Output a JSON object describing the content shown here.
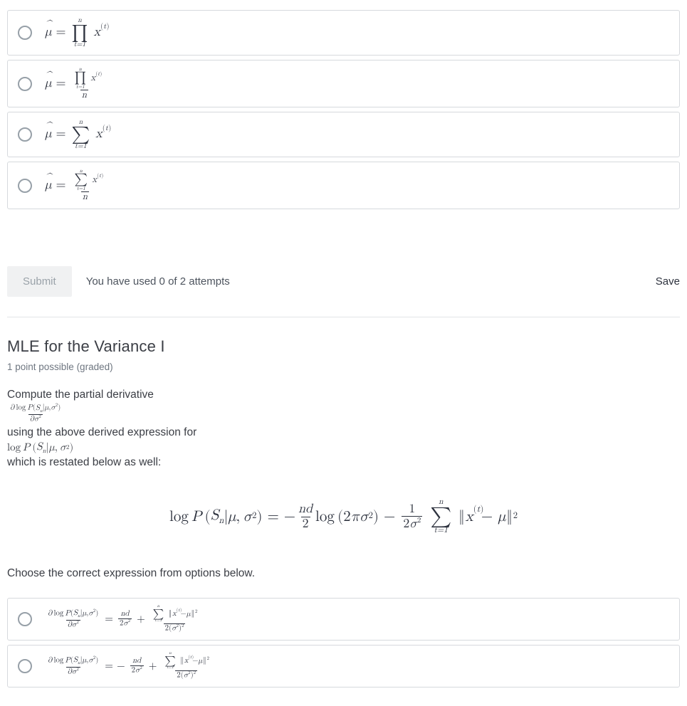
{
  "q1_options": {
    "opt1_html": "<span class='hat it'>μ</span>&nbsp;=&nbsp;<span class='sumop'><span class='lim'>n</span><span class='big'>∏</span><span class='lim'>t=1</span></span>&nbsp;<span class='xswrap'><span class='it'>x</span><span class='supTR'>(<span class='it'>t</span>)</span></span>",
    "opt2_html": "<span class='hat it'>μ</span>&nbsp;=&nbsp;<span class='frac'><span class='num'><span class='sumop'><span class='lim'>n</span><span class='big'>∏</span><span class='lim'>t=1</span></span>&nbsp;<span class='xswrap'><span class='it'>x</span><span class='supTR'>(<span class='it'>t</span>)</span></span></span><span class='den it'>n</span></span>",
    "opt3_html": "<span class='hat it'>μ</span>&nbsp;=&nbsp;<span class='sumop'><span class='lim'>n</span><span class='big'>∑</span><span class='lim'>t=1</span></span>&nbsp;<span class='xswrap'><span class='it'>x</span><span class='supTR'>(<span class='it'>t</span>)</span></span>",
    "opt4_html": "<span class='hat it'>μ</span>&nbsp;=&nbsp;<span class='frac'><span class='num'><span class='sumop'><span class='lim'>n</span><span class='big'>∑</span><span class='lim'>t=1</span></span>&nbsp;<span class='xswrap'><span class='it'>x</span><span class='supTR'>(<span class='it'>t</span>)</span></span></span><span class='den it'>n</span></span>"
  },
  "submit_label": "Submit",
  "attempts_text": "You have used 0 of 2 attempts",
  "save_label": "Save",
  "section_title": "MLE for the Variance I",
  "grade_info": "1 point possible (graded)",
  "prose": {
    "prefix": "Compute the partial derivative ",
    "deriv_inline_html": "<span class='frac'><span class='num'><span class='it'>∂</span>&thinsp;log&thinsp;<span class='it'>P</span>(<span class='it'>S<span class='sub'>n</span></span>|<span class='it'>μ</span>,<span class='it'>σ</span><span class='sup'>2</span>)</span><span class='den'><span class='it'>∂σ</span><span class='sup'>2</span></span></span>",
    "middle": " using the above derived expression for ",
    "logp_inline_html": "log&thinsp;<span class='it'>P</span>&thinsp;(<span class='it'>S<span class='sub'>n</span></span>|<span class='it'>μ</span>,&thinsp;<span class='it'>σ</span><span class='sup'>2</span>)",
    "suffix": " which is restated below as well:"
  },
  "display_eq_html": "log&thinsp;<span class='it'>P</span>&thinsp;(<span class='it'>S<span class='sub'>n</span></span>|<span class='it'>μ</span>,&thinsp;<span class='it'>σ</span><span class='sup'>2</span>)&nbsp;=&nbsp;−<span class='frac'><span class='num it'>nd</span><span class='den'>2</span></span>log&thinsp;(2<span class='it'>πσ</span><span class='sup'>2</span>)&nbsp;−&nbsp;<span class='frac'><span class='num'>1</span><span class='den'>2<span class='it'>σ</span><span class='sup'>2</span></span></span>&nbsp;<span class='sumop'><span class='lim'>n</span><span class='big'>∑</span><span class='lim'>t=1</span></span>&nbsp;<span class='norm'></span><span class='xswrap'><span class='it'>x</span><span class='supTR'>(<span class='it'>t</span>)</span></span>&thinsp;&nbsp;−&nbsp;<span class='it'>μ</span><span class='norm-close'></span><span class='sup'>2</span>",
  "choose_text": "Choose the correct expression from options below.",
  "q2_options": {
    "opt1_html": "<span class='frac'><span class='num'><span class='it'>∂</span>&thinsp;log&thinsp;<span class='it'>P</span>(<span class='it'>S<span class='sub'>n</span></span>|<span class='it'>μ</span>,<span class='it'>σ</span><span class='sup'>2</span>)</span><span class='den'><span class='it'>∂σ</span><span class='sup'>2</span></span></span>&nbsp;=&nbsp;<span class='frac'><span class='num it'>nd</span><span class='den'>2<span class='it'>σ</span><span class='sup'>2</span></span></span>&nbsp;+&nbsp;<span class='frac'><span class='num'><span class='sumop'><span class='lim'>n</span><span class='big'>∑</span><span class='lim'>t=1</span></span>&nbsp;<span class='norm'></span><span class='xswrap'><span class='it'>x</span><span class='supTR'>(<span class='it'>t</span>)</span></span>&thinsp;&nbsp;−<span class='it'>μ</span><span class='norm-close'></span><span class='sup'>2</span></span><span class='den'>2(<span class='it'>σ</span><span class='sup'>2</span>)<span class='sup'>2</span></span></span>",
    "opt2_html": "<span class='frac'><span class='num'><span class='it'>∂</span>&thinsp;log&thinsp;<span class='it'>P</span>(<span class='it'>S<span class='sub'>n</span></span>|<span class='it'>μ</span>,<span class='it'>σ</span><span class='sup'>2</span>)</span><span class='den'><span class='it'>∂σ</span><span class='sup'>2</span></span></span>&nbsp;=&nbsp;−&nbsp;<span class='frac'><span class='num it'>nd</span><span class='den'>2<span class='it'>σ</span><span class='sup'>2</span></span></span>&nbsp;+&nbsp;<span class='frac'><span class='num'><span class='sumop'><span class='lim'>n</span><span class='big'>∑</span><span class='lim'>t=1</span></span>&nbsp;<span class='norm'></span><span class='xswrap'><span class='it'>x</span><span class='supTR'>(<span class='it'>t</span>)</span></span>&thinsp;&nbsp;−<span class='it'>μ</span><span class='norm-close'></span><span class='sup'>2</span></span><span class='den'>2(<span class='it'>σ</span><span class='sup'>2</span>)<span class='sup'>2</span></span></span>"
  },
  "colors": {
    "border": "#d6d9dd",
    "radio_border": "#97a0a8",
    "text": "#2d323e",
    "muted": "#6e7680",
    "btn_bg": "#f0f1f2",
    "btn_text": "#9aa2a9",
    "divider": "#e3e5e8"
  }
}
